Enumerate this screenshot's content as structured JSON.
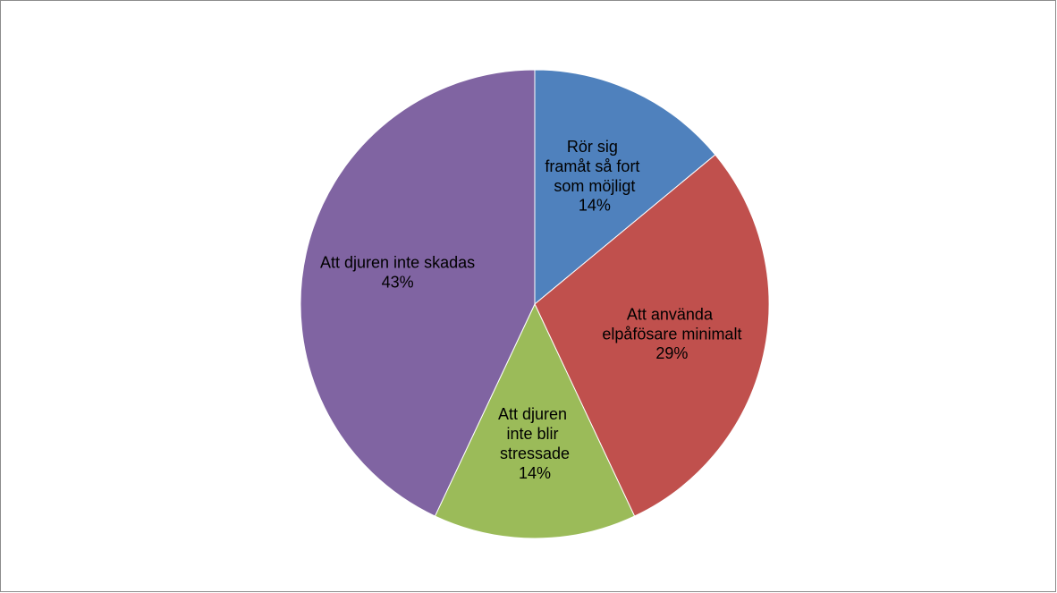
{
  "chart_data": {
    "type": "pie",
    "categories": [
      "Rör sig framåt så fort som möjligt",
      "Att använda elpåfösare minimalt",
      "Att djuren inte blir stressade",
      "Att djuren inte skadas"
    ],
    "values": [
      14,
      29,
      14,
      43
    ],
    "value_labels": [
      "14%",
      "29%",
      "14%",
      "43%"
    ],
    "colors": [
      "#4f81bd",
      "#c0504d",
      "#9bbb59",
      "#8064a2"
    ]
  }
}
